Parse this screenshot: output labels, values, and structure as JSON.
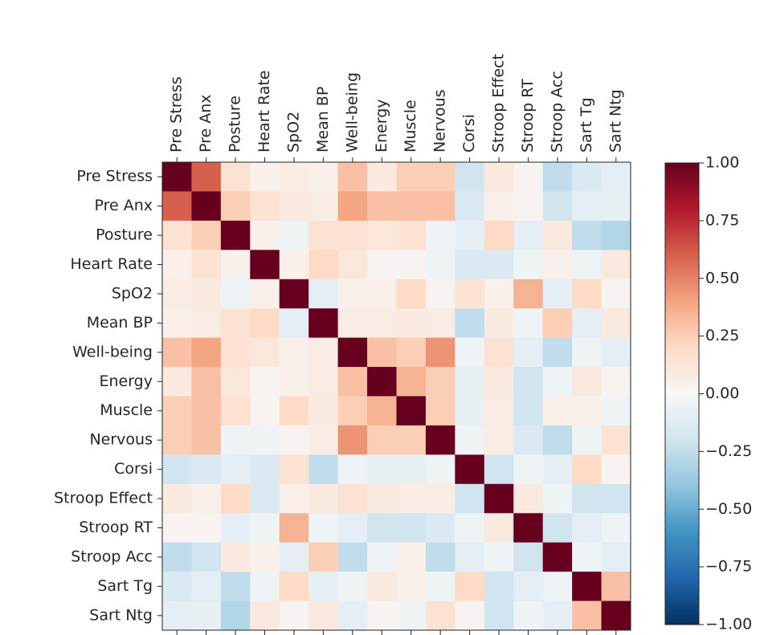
{
  "chart_data": {
    "type": "heatmap",
    "x_categories": [
      "Pre Stress",
      "Pre Anx",
      "Posture",
      "Heart Rate",
      "SpO2",
      "Mean BP",
      "Well-being",
      "Energy",
      "Muscle",
      "Nervous",
      "Corsi",
      "Stroop Effect",
      "Stroop RT",
      "Stroop Acc",
      "Sart Tg",
      "Sart Ntg"
    ],
    "y_categories": [
      "Pre Stress",
      "Pre Anx",
      "Posture",
      "Heart Rate",
      "SpO2",
      "Mean BP",
      "Well-being",
      "Energy",
      "Muscle",
      "Nervous",
      "Corsi",
      "Stroop Effect",
      "Stroop RT",
      "Stroop Acc",
      "Sart Tg",
      "Sart Ntg"
    ],
    "values": [
      [
        1,
        0.6,
        0.15,
        0.05,
        0.08,
        0.05,
        0.3,
        0.1,
        0.25,
        0.25,
        -0.2,
        0.1,
        0.03,
        -0.25,
        -0.15,
        -0.1
      ],
      [
        0.6,
        1,
        0.25,
        0.15,
        0.1,
        0.08,
        0.4,
        0.3,
        0.3,
        0.3,
        -0.15,
        0.05,
        0.03,
        -0.2,
        -0.1,
        -0.08
      ],
      [
        0.15,
        0.25,
        1,
        0.05,
        -0.05,
        0.15,
        0.15,
        0.12,
        0.15,
        -0.05,
        -0.1,
        0.2,
        -0.1,
        0.1,
        -0.25,
        -0.3
      ],
      [
        0.05,
        0.15,
        0.05,
        1,
        0.05,
        0.2,
        0.12,
        0.03,
        0.03,
        -0.05,
        -0.15,
        -0.15,
        -0.05,
        0.05,
        -0.05,
        0.1
      ],
      [
        0.08,
        0.1,
        -0.05,
        0.05,
        1,
        -0.1,
        0.05,
        0.05,
        0.2,
        0.03,
        0.15,
        0.05,
        0.35,
        -0.1,
        0.2,
        0.03
      ],
      [
        0.05,
        0.08,
        0.15,
        0.2,
        -0.1,
        1,
        0.08,
        0.08,
        0.1,
        0.08,
        -0.25,
        0.1,
        -0.05,
        0.25,
        -0.1,
        0.1
      ],
      [
        0.3,
        0.4,
        0.15,
        0.12,
        0.05,
        0.08,
        1,
        0.3,
        0.25,
        0.45,
        -0.05,
        0.15,
        -0.1,
        -0.25,
        -0.05,
        -0.1
      ],
      [
        0.1,
        0.3,
        0.12,
        0.03,
        0.05,
        0.08,
        0.3,
        1,
        0.35,
        0.25,
        -0.08,
        0.1,
        -0.2,
        -0.05,
        0.1,
        0.03
      ],
      [
        0.25,
        0.3,
        0.15,
        0.03,
        0.2,
        0.1,
        0.25,
        0.35,
        1,
        0.25,
        -0.08,
        0.08,
        -0.2,
        0.05,
        0.05,
        -0.05
      ],
      [
        0.25,
        0.3,
        -0.05,
        -0.05,
        0.03,
        0.08,
        0.45,
        0.25,
        0.25,
        1,
        -0.05,
        0.08,
        -0.15,
        -0.25,
        -0.05,
        0.15
      ],
      [
        -0.2,
        -0.15,
        -0.1,
        -0.15,
        0.15,
        -0.25,
        -0.05,
        -0.08,
        -0.08,
        -0.05,
        1,
        -0.2,
        -0.05,
        -0.1,
        0.2,
        0.03
      ],
      [
        0.1,
        0.05,
        0.2,
        -0.15,
        0.05,
        0.1,
        0.15,
        0.1,
        0.08,
        0.08,
        -0.2,
        1,
        0.1,
        -0.05,
        -0.2,
        -0.2
      ],
      [
        0.03,
        0.03,
        -0.1,
        -0.05,
        0.35,
        -0.05,
        -0.1,
        -0.2,
        -0.2,
        -0.15,
        -0.05,
        0.1,
        1,
        -0.2,
        -0.1,
        -0.05
      ],
      [
        -0.25,
        -0.2,
        0.1,
        0.05,
        -0.1,
        0.25,
        -0.25,
        -0.05,
        0.05,
        -0.25,
        -0.1,
        -0.05,
        -0.2,
        1,
        -0.05,
        -0.1
      ],
      [
        -0.15,
        -0.1,
        -0.25,
        -0.05,
        0.2,
        -0.1,
        -0.05,
        0.1,
        0.05,
        -0.05,
        0.2,
        -0.2,
        -0.1,
        -0.05,
        1,
        0.3
      ],
      [
        -0.1,
        -0.08,
        -0.3,
        0.1,
        0.03,
        0.1,
        -0.1,
        0.03,
        -0.05,
        0.15,
        0.03,
        -0.2,
        -0.05,
        -0.1,
        0.3,
        1
      ]
    ],
    "zlim": [
      -1,
      1
    ],
    "colormap": [
      "#053061",
      "#2166ac",
      "#4393c3",
      "#92c5de",
      "#d1e5f0",
      "#f7f7f7",
      "#fddbc7",
      "#f4a582",
      "#d6604d",
      "#b2182b",
      "#67001f"
    ],
    "colorbar_ticks": [
      {
        "value": 1,
        "label": "1.00"
      },
      {
        "value": 0.75,
        "label": "0.75"
      },
      {
        "value": 0.5,
        "label": "0.50"
      },
      {
        "value": 0.25,
        "label": "0.25"
      },
      {
        "value": 0,
        "label": "0.00"
      },
      {
        "value": -0.25,
        "label": "−0.25"
      },
      {
        "value": -0.5,
        "label": "−0.50"
      },
      {
        "value": -0.75,
        "label": "−0.75"
      },
      {
        "value": -1,
        "label": "−1.00"
      }
    ]
  }
}
